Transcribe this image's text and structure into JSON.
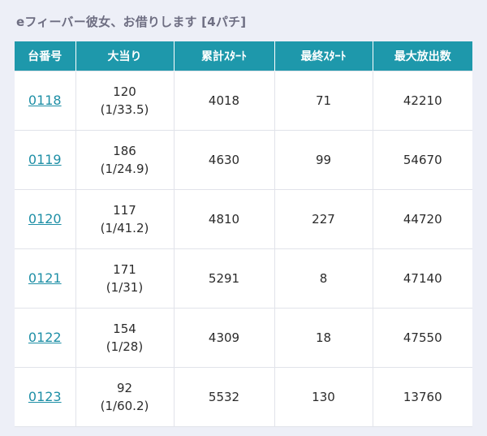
{
  "title": "eフィーバー彼女、お借りします [4パチ]",
  "table": {
    "headers": [
      "台番号",
      "大当り",
      "累計ｽﾀｰﾄ",
      "最終ｽﾀｰﾄ",
      "最大放出数"
    ],
    "rows": [
      {
        "number": "0118",
        "hits": "120",
        "ratio": "(1/33.5)",
        "total_start": "4018",
        "last_start": "71",
        "max_out": "42210"
      },
      {
        "number": "0119",
        "hits": "186",
        "ratio": "(1/24.9)",
        "total_start": "4630",
        "last_start": "99",
        "max_out": "54670"
      },
      {
        "number": "0120",
        "hits": "117",
        "ratio": "(1/41.2)",
        "total_start": "4810",
        "last_start": "227",
        "max_out": "44720"
      },
      {
        "number": "0121",
        "hits": "171",
        "ratio": "(1/31)",
        "total_start": "5291",
        "last_start": "8",
        "max_out": "47140"
      },
      {
        "number": "0122",
        "hits": "154",
        "ratio": "(1/28)",
        "total_start": "4309",
        "last_start": "18",
        "max_out": "47550"
      },
      {
        "number": "0123",
        "hits": "92",
        "ratio": "(1/60.2)",
        "total_start": "5532",
        "last_start": "130",
        "max_out": "13760"
      }
    ]
  },
  "colors": {
    "header_bg": "#1e98ab",
    "link": "#1e8fa6",
    "page_bg": "#edeff7"
  }
}
